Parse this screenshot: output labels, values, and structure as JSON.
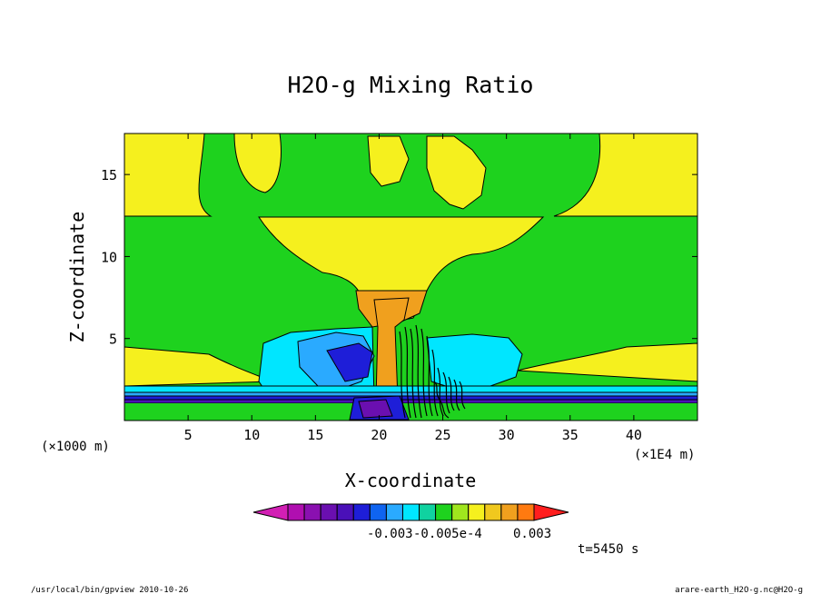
{
  "chart_data": {
    "type": "heatmap",
    "title": "H2O-g Mixing Ratio",
    "xlabel": "X-coordinate",
    "ylabel": "Z-coordinate",
    "x_unit": "(×1E4 m)",
    "y_unit": "(×1000 m)",
    "xlim": [
      0,
      45
    ],
    "ylim": [
      0,
      17.5
    ],
    "x_ticks": [
      "5",
      "10",
      "15",
      "20",
      "25",
      "30",
      "35",
      "40"
    ],
    "y_ticks": [
      "5",
      "10",
      "15"
    ],
    "legend_position": "bottom",
    "colorbar": {
      "colors": [
        "#d21fb4",
        "#b00fb0",
        "#8a10b0",
        "#6a0fb0",
        "#4a10b8",
        "#1e1ed8",
        "#0f64f0",
        "#2aaaff",
        "#00e6ff",
        "#10d2a0",
        "#1ed21e",
        "#a0e61e",
        "#f5f01e",
        "#f0c81e",
        "#f0a01e",
        "#ff7a10",
        "#ff1e1e"
      ],
      "tick_labels": [
        "-0.003",
        "-0.005e-4",
        "0.003"
      ]
    },
    "time_label": "t=5450 s"
  },
  "footer": {
    "left": "/usr/local/bin/gpview  2010-10-26",
    "right": "arare-earth_H2O-g.nc@H2O-g"
  }
}
